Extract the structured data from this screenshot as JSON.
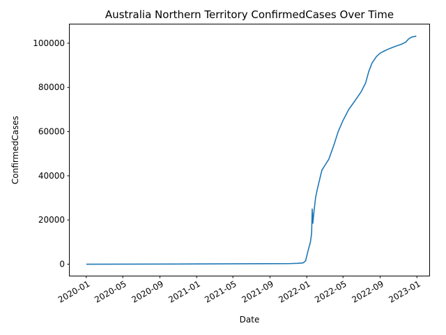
{
  "chart_data": {
    "type": "line",
    "title": "Australia Northern Territory ConfirmedCases Over Time",
    "xlabel": "Date",
    "ylabel": "ConfirmedCases",
    "ylim": [
      -5200,
      108500
    ],
    "xlim": [
      "2019-11-07",
      "2023-02-11"
    ],
    "grid": false,
    "legend": "none",
    "color": "#1f77b4",
    "yticks": [
      {
        "value": 0,
        "label": "0"
      },
      {
        "value": 20000,
        "label": "20000"
      },
      {
        "value": 40000,
        "label": "40000"
      },
      {
        "value": 60000,
        "label": "60000"
      },
      {
        "value": 80000,
        "label": "80000"
      },
      {
        "value": 100000,
        "label": "100000"
      }
    ],
    "xticks": [
      {
        "date": "2020-01-01",
        "label": "2020-01"
      },
      {
        "date": "2020-05-01",
        "label": "2020-05"
      },
      {
        "date": "2020-09-01",
        "label": "2020-09"
      },
      {
        "date": "2021-01-01",
        "label": "2021-01"
      },
      {
        "date": "2021-05-01",
        "label": "2021-05"
      },
      {
        "date": "2021-09-01",
        "label": "2021-09"
      },
      {
        "date": "2022-01-01",
        "label": "2022-01"
      },
      {
        "date": "2022-05-01",
        "label": "2022-05"
      },
      {
        "date": "2022-09-01",
        "label": "2022-09"
      },
      {
        "date": "2023-01-01",
        "label": "2023-01"
      }
    ],
    "series": [
      {
        "name": "ConfirmedCases",
        "points": [
          [
            "2020-01-01",
            0
          ],
          [
            "2020-06-01",
            30
          ],
          [
            "2021-01-01",
            100
          ],
          [
            "2021-06-01",
            200
          ],
          [
            "2021-11-01",
            250
          ],
          [
            "2021-12-01",
            400
          ],
          [
            "2021-12-20",
            600
          ],
          [
            "2021-12-28",
            1500
          ],
          [
            "2022-01-05",
            6000
          ],
          [
            "2022-01-13",
            10000
          ],
          [
            "2022-01-17",
            14000
          ],
          [
            "2022-01-19",
            25000
          ],
          [
            "2022-01-21",
            18500
          ],
          [
            "2022-01-25",
            24000
          ],
          [
            "2022-01-30",
            30000
          ],
          [
            "2022-02-05",
            34000
          ],
          [
            "2022-02-12",
            38000
          ],
          [
            "2022-02-20",
            42500
          ],
          [
            "2022-03-01",
            44500
          ],
          [
            "2022-03-15",
            47500
          ],
          [
            "2022-04-01",
            54000
          ],
          [
            "2022-04-15",
            60000
          ],
          [
            "2022-05-01",
            65000
          ],
          [
            "2022-05-20",
            70000
          ],
          [
            "2022-06-10",
            74000
          ],
          [
            "2022-06-30",
            78000
          ],
          [
            "2022-07-15",
            82000
          ],
          [
            "2022-07-25",
            87000
          ],
          [
            "2022-08-05",
            91000
          ],
          [
            "2022-08-20",
            94000
          ],
          [
            "2022-09-01",
            95500
          ],
          [
            "2022-09-15",
            96500
          ],
          [
            "2022-10-01",
            97500
          ],
          [
            "2022-10-20",
            98500
          ],
          [
            "2022-11-10",
            99500
          ],
          [
            "2022-11-25",
            100500
          ],
          [
            "2022-12-05",
            102000
          ],
          [
            "2022-12-15",
            102800
          ],
          [
            "2022-12-30",
            103200
          ]
        ]
      }
    ]
  }
}
